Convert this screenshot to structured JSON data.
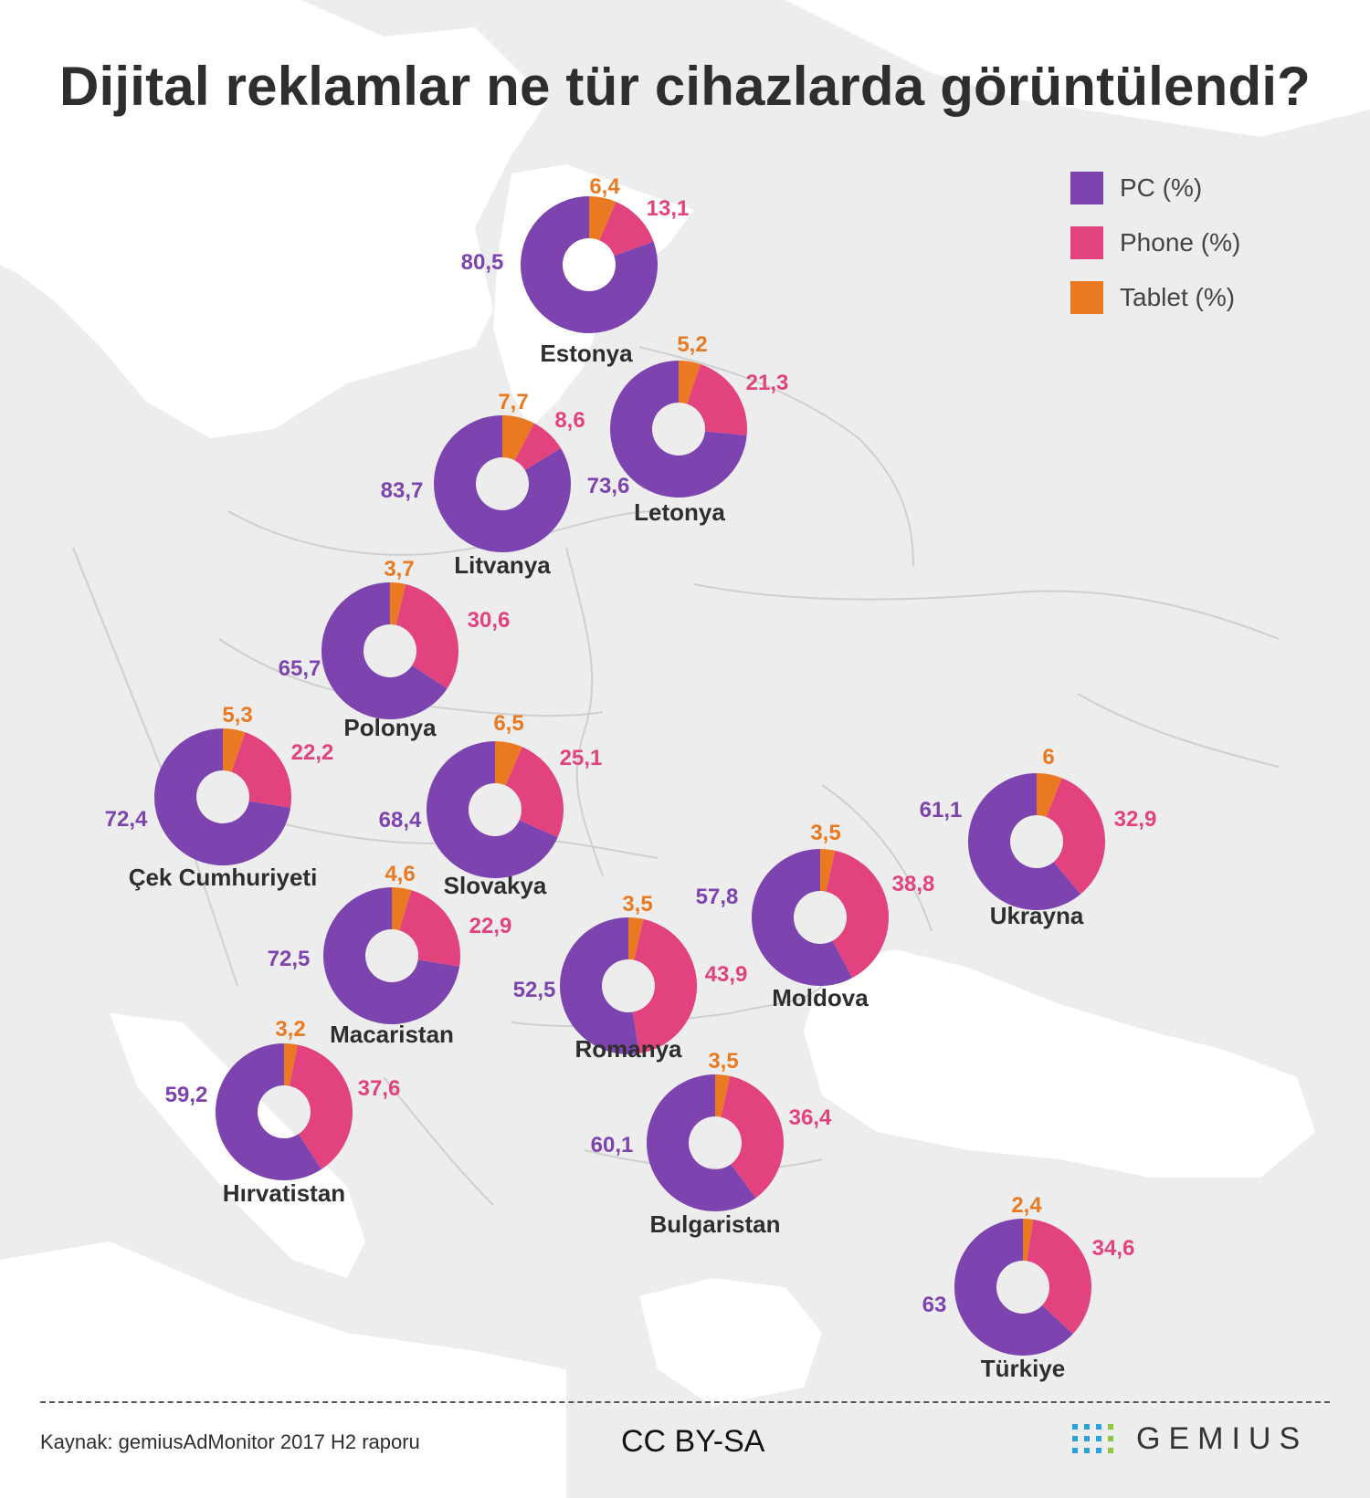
{
  "title": "Dijital reklamlar ne tür cihazlarda görüntülendi?",
  "legend": [
    {
      "label": "PC (%)",
      "color": "#7d44b0"
    },
    {
      "label": "Phone (%)",
      "color": "#e2437e"
    },
    {
      "label": "Tablet (%)",
      "color": "#ea7a22"
    }
  ],
  "colors": {
    "pc": "#7d44b0",
    "phone": "#e2437e",
    "tablet": "#ea7a22",
    "text": "#2e2e2e",
    "background": "#ededed"
  },
  "chart_data": {
    "type": "pie",
    "series_order": [
      "Tablet",
      "Phone",
      "PC"
    ],
    "countries": [
      {
        "name": "Estonya",
        "pc": 80.5,
        "phone": 13.1,
        "tablet": 6.4,
        "pc_label": "80,5",
        "phone_label": "13,1",
        "tablet_label": "6,4"
      },
      {
        "name": "Letonya",
        "pc": 73.6,
        "phone": 21.3,
        "tablet": 5.2,
        "pc_label": "73,6",
        "phone_label": "21,3",
        "tablet_label": "5,2"
      },
      {
        "name": "Litvanya",
        "pc": 83.7,
        "phone": 8.6,
        "tablet": 7.7,
        "pc_label": "83,7",
        "phone_label": "8,6",
        "tablet_label": "7,7"
      },
      {
        "name": "Polonya",
        "pc": 65.7,
        "phone": 30.6,
        "tablet": 3.7,
        "pc_label": "65,7",
        "phone_label": "30,6",
        "tablet_label": "3,7"
      },
      {
        "name": "Çek Cumhuriyeti",
        "pc": 72.4,
        "phone": 22.2,
        "tablet": 5.3,
        "pc_label": "72,4",
        "phone_label": "22,2",
        "tablet_label": "5,3"
      },
      {
        "name": "Slovakya",
        "pc": 68.4,
        "phone": 25.1,
        "tablet": 6.5,
        "pc_label": "68,4",
        "phone_label": "25,1",
        "tablet_label": "6,5"
      },
      {
        "name": "Macaristan",
        "pc": 72.5,
        "phone": 22.9,
        "tablet": 4.6,
        "pc_label": "72,5",
        "phone_label": "22,9",
        "tablet_label": "4,6"
      },
      {
        "name": "Romanya",
        "pc": 52.5,
        "phone": 43.9,
        "tablet": 3.5,
        "pc_label": "52,5",
        "phone_label": "43,9",
        "tablet_label": "3,5"
      },
      {
        "name": "Moldova",
        "pc": 57.8,
        "phone": 38.8,
        "tablet": 3.5,
        "pc_label": "57,8",
        "phone_label": "38,8",
        "tablet_label": "3,5"
      },
      {
        "name": "Ukrayna",
        "pc": 61.1,
        "phone": 32.9,
        "tablet": 6,
        "pc_label": "61,1",
        "phone_label": "32,9",
        "tablet_label": "6"
      },
      {
        "name": "Hırvatistan",
        "pc": 59.2,
        "phone": 37.6,
        "tablet": 3.2,
        "pc_label": "59,2",
        "phone_label": "37,6",
        "tablet_label": "3,2"
      },
      {
        "name": "Bulgaristan",
        "pc": 60.1,
        "phone": 36.4,
        "tablet": 3.5,
        "pc_label": "60,1",
        "phone_label": "36,4",
        "tablet_label": "3,5"
      },
      {
        "name": "Türkiye",
        "pc": 63,
        "phone": 34.6,
        "tablet": 2.4,
        "pc_label": "63",
        "phone_label": "34,6",
        "tablet_label": "2,4"
      }
    ]
  },
  "footer": {
    "source": "Kaynak: gemiusAdMonitor 2017 H2 raporu",
    "license": "CC BY-SA",
    "brand": "GEMIUS"
  }
}
